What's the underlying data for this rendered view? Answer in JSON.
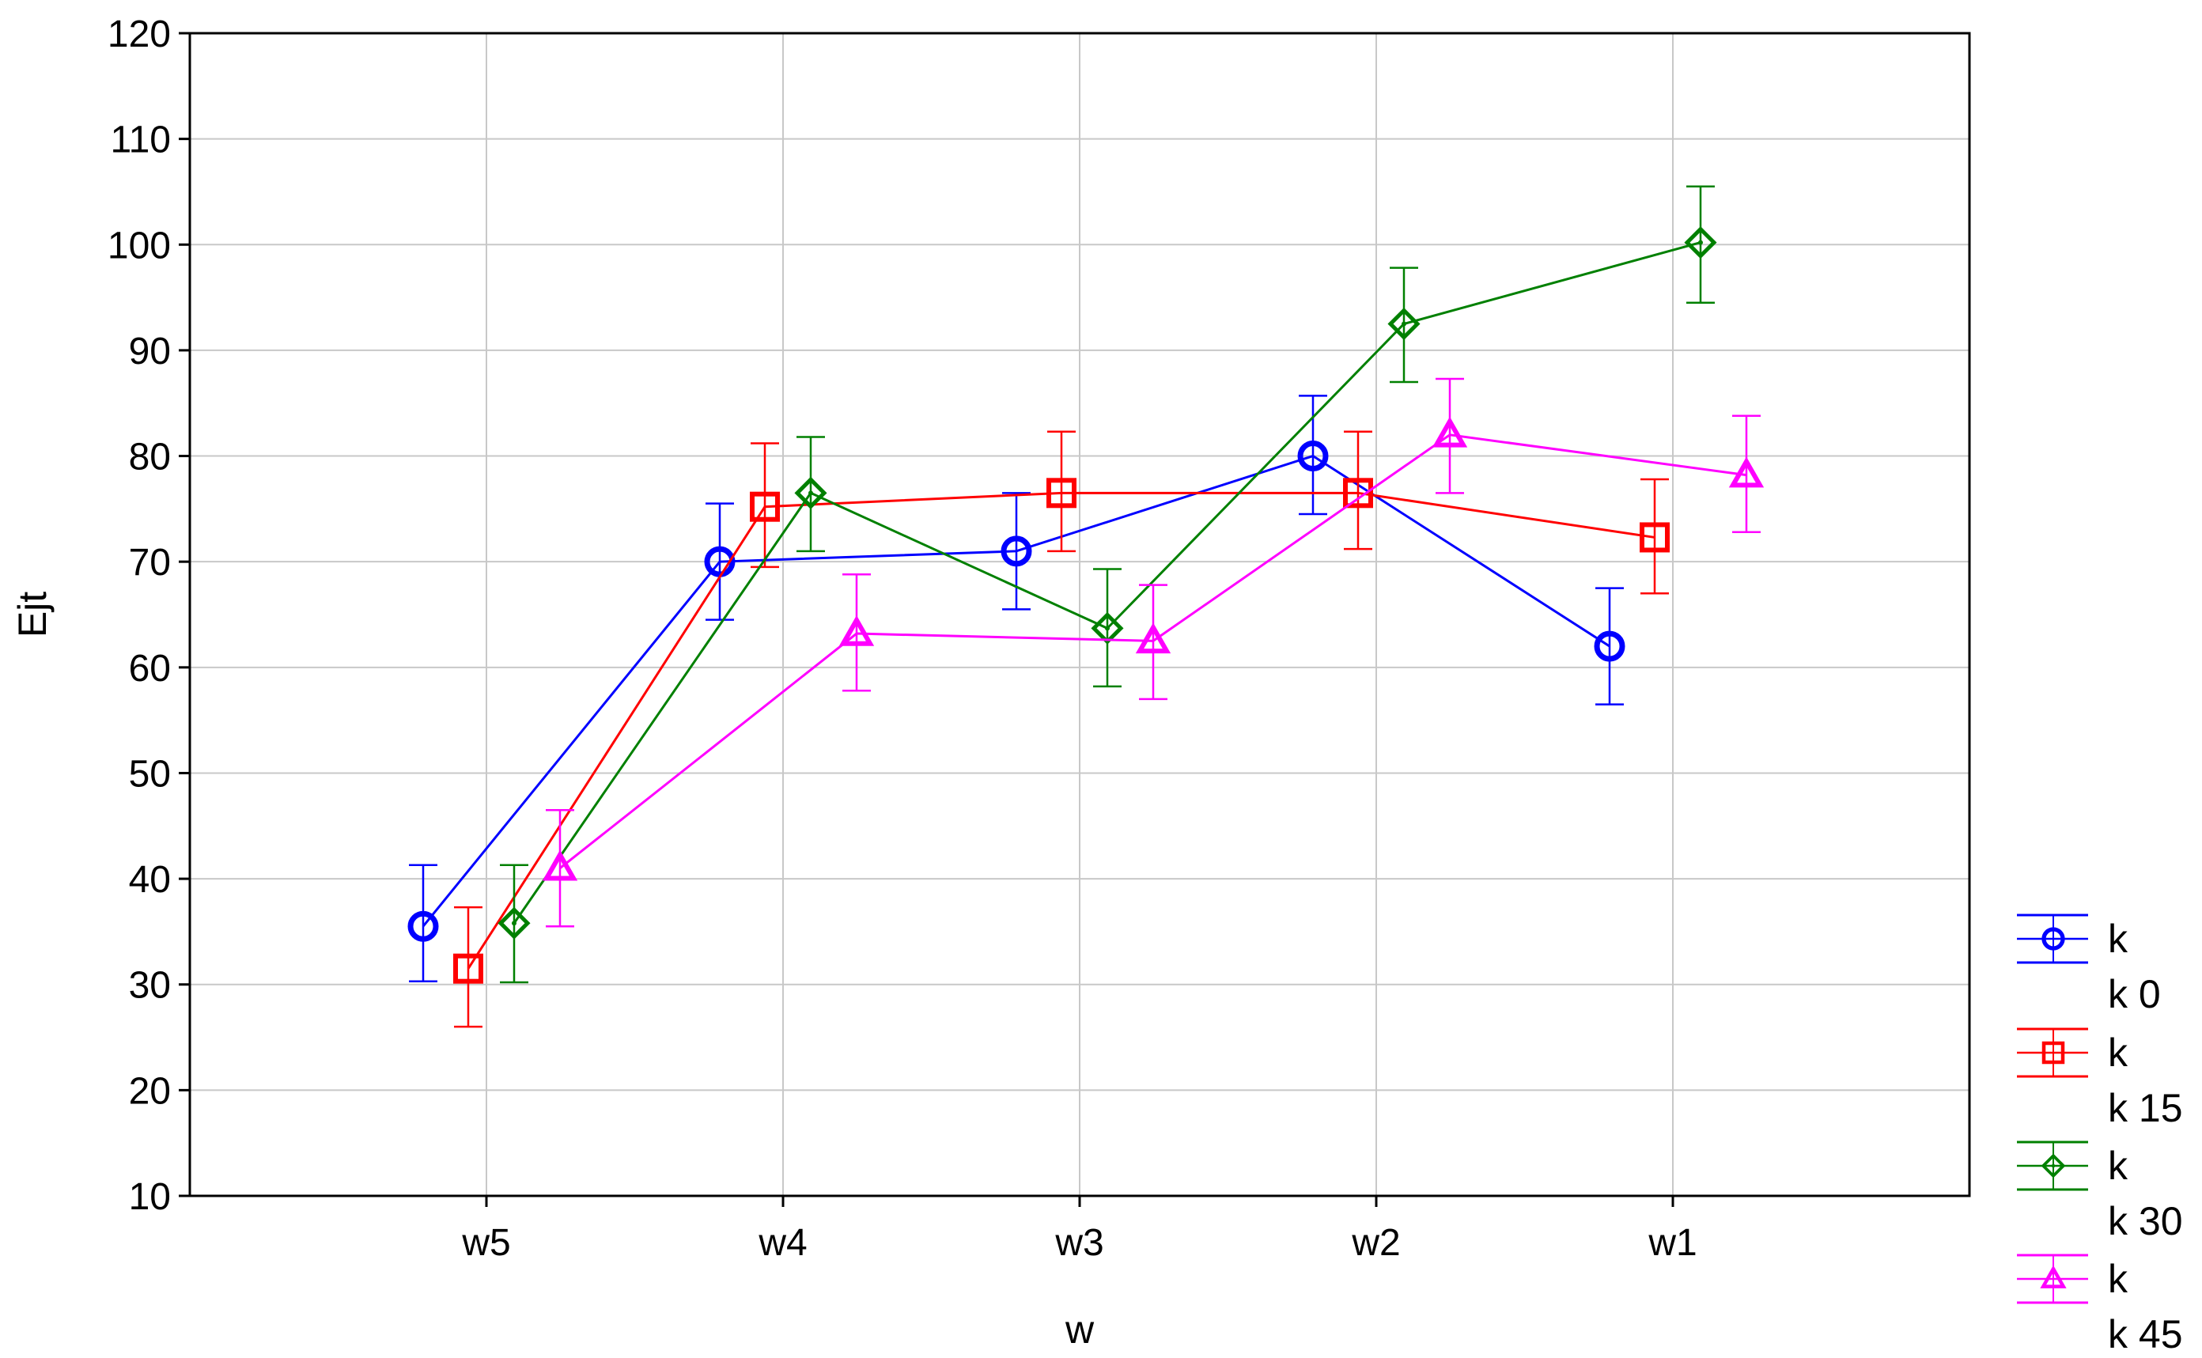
{
  "chart_data": {
    "type": "line",
    "title": "",
    "xlabel": "w",
    "ylabel": "Ejt",
    "categories": [
      "w5",
      "w4",
      "w3",
      "w2",
      "w1"
    ],
    "ylim": [
      10,
      120
    ],
    "yticks": [
      10,
      20,
      30,
      40,
      50,
      60,
      70,
      80,
      90,
      100,
      110,
      120
    ],
    "grid": true,
    "error_bars": true,
    "legend_position": "bottom-right",
    "series": [
      {
        "name": "k 0",
        "legend_title": "k",
        "color": "#0000ff",
        "marker": "circle",
        "values": [
          35.5,
          70.0,
          71.0,
          80.0,
          62.0
        ],
        "lower": [
          30.3,
          64.5,
          65.5,
          74.5,
          56.5
        ],
        "upper": [
          41.3,
          75.5,
          76.5,
          85.7,
          67.5
        ]
      },
      {
        "name": "k 15",
        "legend_title": "k",
        "color": "#ff0000",
        "marker": "square",
        "values": [
          31.5,
          75.2,
          76.5,
          76.5,
          72.3
        ],
        "lower": [
          26.0,
          69.5,
          71.0,
          71.2,
          67.0
        ],
        "upper": [
          37.3,
          81.2,
          82.3,
          82.3,
          77.8
        ]
      },
      {
        "name": "k 30",
        "legend_title": "k",
        "color": "#008000",
        "marker": "diamond",
        "values": [
          35.8,
          76.5,
          63.7,
          92.5,
          100.2
        ],
        "lower": [
          30.2,
          71.0,
          58.2,
          87.0,
          94.5
        ],
        "upper": [
          41.3,
          81.8,
          69.3,
          97.8,
          105.5
        ]
      },
      {
        "name": "k 45",
        "legend_title": "k",
        "color": "#ff00ff",
        "marker": "triangle",
        "values": [
          41.0,
          63.2,
          62.5,
          82.0,
          78.2
        ],
        "lower": [
          35.5,
          57.8,
          57.0,
          76.5,
          72.8
        ],
        "upper": [
          46.5,
          68.8,
          67.8,
          87.3,
          83.8
        ]
      }
    ]
  }
}
